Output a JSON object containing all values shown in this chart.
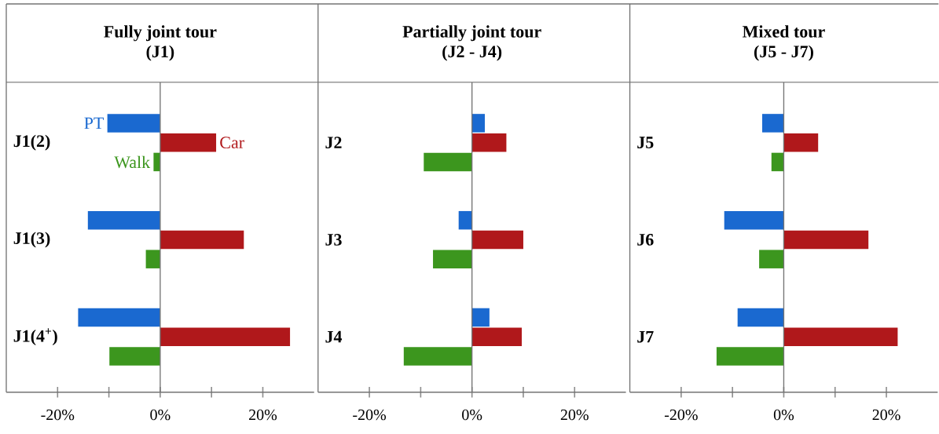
{
  "chart_data": [
    {
      "type": "bar",
      "orientation": "horizontal",
      "title": "Fully joint tour",
      "subtitle": "(J1)",
      "categories": [
        "J1(2)",
        "J1(3)",
        "J1(4$^{+}$)"
      ],
      "series": [
        {
          "name": "PT",
          "color": "#1a69d0",
          "values": [
            -10.3,
            -14.1,
            -16.0
          ]
        },
        {
          "name": "Car",
          "color": "#b0181b",
          "values": [
            10.9,
            16.3,
            25.3
          ]
        },
        {
          "name": "Walk",
          "color": "#3c961e",
          "values": [
            -1.3,
            -2.8,
            -9.9
          ]
        }
      ],
      "xlim": [
        -30,
        30
      ],
      "xticks": [
        {
          "value": -20,
          "label": "-20%"
        },
        {
          "value": -10,
          "label": null
        },
        {
          "value": 0,
          "label": "0%"
        },
        {
          "value": 10,
          "label": null
        },
        {
          "value": 20,
          "label": "20%"
        }
      ]
    },
    {
      "type": "bar",
      "orientation": "horizontal",
      "title": "Partially joint tour",
      "subtitle": "(J2 - J4)",
      "categories": [
        "J2",
        "J3",
        "J4"
      ],
      "series": [
        {
          "color": "#1a69d0",
          "values": [
            2.5,
            -2.6,
            3.4
          ]
        },
        {
          "color": "#b0181b",
          "values": [
            6.7,
            10.0,
            9.7
          ]
        },
        {
          "color": "#3c961e",
          "values": [
            -9.4,
            -7.6,
            -13.3
          ]
        }
      ],
      "xlim": [
        -30,
        30
      ],
      "xticks": [
        {
          "value": -20,
          "label": "-20%"
        },
        {
          "value": -10,
          "label": null
        },
        {
          "value": 0,
          "label": "0%"
        },
        {
          "value": 10,
          "label": null
        },
        {
          "value": 20,
          "label": "20%"
        }
      ]
    },
    {
      "type": "bar",
      "orientation": "horizontal",
      "title": "Mixed tour",
      "subtitle": "(J5 - J7)",
      "categories": [
        "J5",
        "J6",
        "J7"
      ],
      "series": [
        {
          "color": "#1a69d0",
          "values": [
            -4.2,
            -11.6,
            -9.0
          ]
        },
        {
          "color": "#b0181b",
          "values": [
            6.7,
            16.5,
            22.2
          ]
        },
        {
          "color": "#3c961e",
          "values": [
            -2.4,
            -4.8,
            -13.1
          ]
        }
      ],
      "xlim": [
        -30,
        30
      ],
      "xticks": [
        {
          "value": -20,
          "label": "-20%"
        },
        {
          "value": -10,
          "label": null
        },
        {
          "value": 0,
          "label": "0%"
        },
        {
          "value": 10,
          "label": null
        },
        {
          "value": 20,
          "label": "20%"
        }
      ]
    }
  ]
}
